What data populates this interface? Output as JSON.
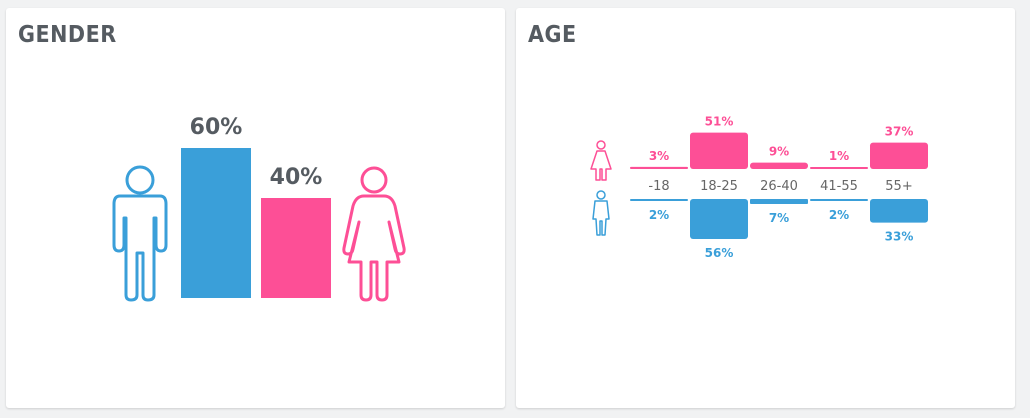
{
  "colors": {
    "male": "#3a9fd9",
    "female": "#fd4f96",
    "text": "#555b61"
  },
  "chart_data": [
    {
      "type": "bar",
      "title": "GENDER",
      "categories": [
        "Male",
        "Female"
      ],
      "values": [
        60,
        40
      ],
      "labels": [
        "60%",
        "40%"
      ],
      "ylim": [
        0,
        60
      ]
    },
    {
      "type": "bar",
      "title": "AGE",
      "categories": [
        "-18",
        "18-25",
        "26-40",
        "41-55",
        "55+"
      ],
      "series": [
        {
          "values": [
            3,
            51,
            9,
            1,
            37
          ],
          "labels": [
            "3%",
            "51%",
            "9%",
            "1%",
            "37%"
          ]
        },
        {
          "values": [
            2,
            56,
            7,
            2,
            33
          ],
          "labels": [
            "2%",
            "56%",
            "7%",
            "2%",
            "33%"
          ]
        }
      ],
      "ylim": [
        0,
        56
      ]
    }
  ]
}
